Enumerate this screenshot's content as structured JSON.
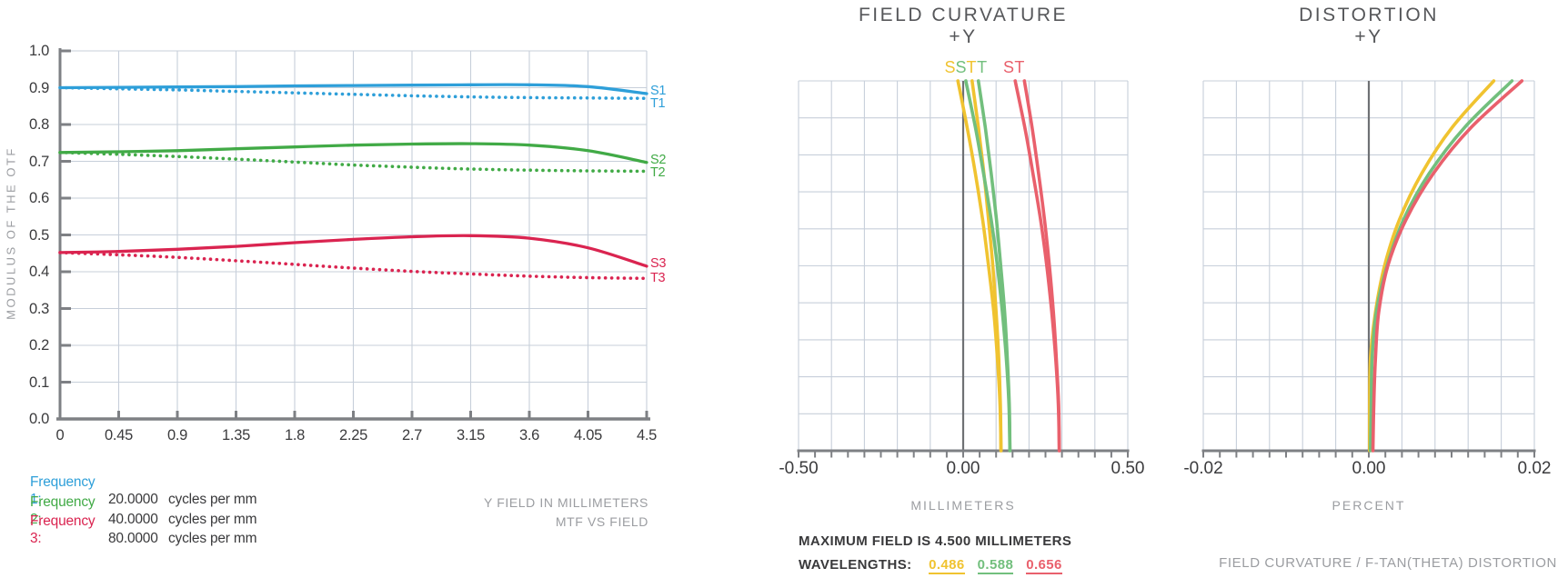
{
  "page": {
    "background": "#FFFFFF"
  },
  "colors": {
    "blue": "#2E9FD9",
    "green": "#41AA46",
    "red": "#DA2450",
    "fc_yellow": "#F0C330",
    "fc_green": "#72BF7D",
    "fc_red": "#E9606C",
    "grid": "#C7CFDA",
    "axis": "#7E8084",
    "zeroline": "#6F7174",
    "tick_text": "#3B3B3D",
    "title_text": "#56575A",
    "muted_text": "#9B9DA1",
    "dark_text": "#39393B"
  },
  "chart_data": [
    {
      "id": "mtf",
      "type": "line",
      "title": "",
      "ylabel": "MODULUS OF THE OTF",
      "xlabel": "Y FIELD IN MILLIMETERS",
      "caption": "MTF VS FIELD",
      "xlim": [
        0,
        4.5
      ],
      "ylim": [
        0,
        1.0
      ],
      "grid": true,
      "xtick_values": [
        0,
        0.45,
        0.9,
        1.35,
        1.8,
        2.25,
        2.7,
        3.15,
        3.6,
        4.05,
        4.5
      ],
      "xtick_labels": [
        "0",
        "0.45",
        "0.9",
        "1.35",
        "1.8",
        "2.25",
        "2.7",
        "3.15",
        "3.6",
        "4.05",
        "4.5"
      ],
      "ytick_values": [
        0,
        0.1,
        0.2,
        0.3,
        0.4,
        0.5,
        0.6,
        0.7,
        0.8,
        0.9,
        1.0
      ],
      "ytick_labels": [
        "0.0",
        "0.1",
        "0.2",
        "0.3",
        "0.4",
        "0.5",
        "0.6",
        "0.7",
        "0.8",
        "0.9",
        "1.0"
      ],
      "x": [
        0,
        0.45,
        0.9,
        1.35,
        1.8,
        2.25,
        2.7,
        3.15,
        3.6,
        4.05,
        4.5
      ],
      "series": [
        {
          "name": "S1",
          "style": "solid",
          "color": "#2E9FD9",
          "values": [
            0.9,
            0.901,
            0.902,
            0.903,
            0.905,
            0.906,
            0.907,
            0.908,
            0.908,
            0.903,
            0.884
          ]
        },
        {
          "name": "T1",
          "style": "dotted",
          "color": "#2E9FD9",
          "values": [
            0.9,
            0.897,
            0.894,
            0.89,
            0.886,
            0.882,
            0.878,
            0.875,
            0.873,
            0.872,
            0.871
          ]
        },
        {
          "name": "S2",
          "style": "solid",
          "color": "#41AA46",
          "values": [
            0.724,
            0.726,
            0.729,
            0.734,
            0.739,
            0.744,
            0.747,
            0.748,
            0.744,
            0.729,
            0.697
          ]
        },
        {
          "name": "T2",
          "style": "dotted",
          "color": "#41AA46",
          "values": [
            0.724,
            0.719,
            0.713,
            0.706,
            0.698,
            0.69,
            0.684,
            0.679,
            0.676,
            0.674,
            0.673
          ]
        },
        {
          "name": "S3",
          "style": "solid",
          "color": "#DA2450",
          "values": [
            0.452,
            0.455,
            0.461,
            0.469,
            0.479,
            0.488,
            0.495,
            0.498,
            0.491,
            0.465,
            0.415
          ]
        },
        {
          "name": "T3",
          "style": "dotted",
          "color": "#DA2450",
          "values": [
            0.452,
            0.446,
            0.439,
            0.43,
            0.42,
            0.41,
            0.401,
            0.394,
            0.388,
            0.384,
            0.382
          ]
        }
      ],
      "legend": [
        {
          "label": "Frequency 1:",
          "number": "20.0000",
          "unit": "cycles per mm",
          "color": "#2E9FD9"
        },
        {
          "label": "Frequency 2:",
          "number": "40.0000",
          "unit": "cycles per mm",
          "color": "#41AA46"
        },
        {
          "label": "Frequency 3:",
          "number": "80.0000",
          "unit": "cycles per mm",
          "color": "#DA2450"
        }
      ]
    },
    {
      "id": "field_curvature",
      "type": "line",
      "title": "FIELD CURVATURE",
      "subtitle": "+Y",
      "xlabel": "MILLIMETERS",
      "xlim": [
        -0.5,
        0.5
      ],
      "ylim": [
        0,
        4.5
      ],
      "grid": true,
      "xtick_values": [
        -0.5,
        0,
        0.5
      ],
      "xtick_labels": [
        "-0.50",
        "0.00",
        "0.50"
      ],
      "top_labels": [
        {
          "text": "S",
          "x": -0.04,
          "color": "#F0C330"
        },
        {
          "text": "S",
          "x": -0.007,
          "color": "#72BF7D"
        },
        {
          "text": "T",
          "x": 0.025,
          "color": "#F0C330"
        },
        {
          "text": "T",
          "x": 0.057,
          "color": "#72BF7D"
        },
        {
          "text": "S",
          "x": 0.138,
          "color": "#E9606C"
        },
        {
          "text": "T",
          "x": 0.171,
          "color": "#E9606C"
        }
      ],
      "series": [
        {
          "name": "S-0.486",
          "color": "#F0C330",
          "points": [
            [
              0.115,
              0
            ],
            [
              0.112,
              0.5625
            ],
            [
              0.104,
              1.125
            ],
            [
              0.093,
              1.6875
            ],
            [
              0.077,
              2.25
            ],
            [
              0.059,
              2.8125
            ],
            [
              0.037,
              3.375
            ],
            [
              0.012,
              3.9375
            ],
            [
              -0.016,
              4.5
            ]
          ]
        },
        {
          "name": "T-0.486",
          "color": "#F0C330",
          "points": [
            [
              0.115,
              0
            ],
            [
              0.113,
              0.5625
            ],
            [
              0.108,
              1.125
            ],
            [
              0.1,
              1.6875
            ],
            [
              0.09,
              2.25
            ],
            [
              0.077,
              2.8125
            ],
            [
              0.063,
              3.375
            ],
            [
              0.046,
              3.9375
            ],
            [
              0.027,
              4.5
            ]
          ]
        },
        {
          "name": "S-0.588",
          "color": "#72BF7D",
          "points": [
            [
              0.142,
              0
            ],
            [
              0.139,
              0.5625
            ],
            [
              0.131,
              1.125
            ],
            [
              0.119,
              1.6875
            ],
            [
              0.104,
              2.25
            ],
            [
              0.085,
              2.8125
            ],
            [
              0.062,
              3.375
            ],
            [
              0.037,
              3.9375
            ],
            [
              0.008,
              4.5
            ]
          ]
        },
        {
          "name": "T-0.588",
          "color": "#72BF7D",
          "points": [
            [
              0.142,
              0
            ],
            [
              0.14,
              0.5625
            ],
            [
              0.134,
              1.125
            ],
            [
              0.126,
              1.6875
            ],
            [
              0.114,
              2.25
            ],
            [
              0.101,
              2.8125
            ],
            [
              0.085,
              3.375
            ],
            [
              0.067,
              3.9375
            ],
            [
              0.046,
              4.5
            ]
          ]
        },
        {
          "name": "S-0.656",
          "color": "#E9606C",
          "points": [
            [
              0.292,
              0
            ],
            [
              0.289,
              0.5625
            ],
            [
              0.281,
              1.125
            ],
            [
              0.269,
              1.6875
            ],
            [
              0.254,
              2.25
            ],
            [
              0.235,
              2.8125
            ],
            [
              0.212,
              3.375
            ],
            [
              0.187,
              3.9375
            ],
            [
              0.158,
              4.5
            ]
          ]
        },
        {
          "name": "T-0.656",
          "color": "#E9606C",
          "points": [
            [
              0.292,
              0
            ],
            [
              0.29,
              0.5625
            ],
            [
              0.283,
              1.125
            ],
            [
              0.274,
              1.6875
            ],
            [
              0.262,
              2.25
            ],
            [
              0.247,
              2.8125
            ],
            [
              0.229,
              3.375
            ],
            [
              0.209,
              3.9375
            ],
            [
              0.186,
              4.5
            ]
          ]
        }
      ]
    },
    {
      "id": "distortion",
      "type": "line",
      "title": "DISTORTION",
      "subtitle": "+Y",
      "xlabel": "PERCENT",
      "xlim": [
        -0.02,
        0.02
      ],
      "ylim": [
        0,
        4.5
      ],
      "grid": true,
      "xtick_values": [
        -0.02,
        0,
        0.02
      ],
      "xtick_labels": [
        "-0.02",
        "0.00",
        "0.02"
      ],
      "series": [
        {
          "name": "0.486",
          "color": "#F0C330",
          "points": [
            [
              0.0001,
              0
            ],
            [
              0.0001,
              0.5625
            ],
            [
              0.0002,
              1.125
            ],
            [
              0.0008,
              1.6875
            ],
            [
              0.0019,
              2.25
            ],
            [
              0.0037,
              2.8125
            ],
            [
              0.0064,
              3.375
            ],
            [
              0.0101,
              3.9375
            ],
            [
              0.0151,
              4.5
            ]
          ]
        },
        {
          "name": "0.588",
          "color": "#72BF7D",
          "points": [
            [
              0.0002,
              0
            ],
            [
              0.0003,
              0.5625
            ],
            [
              0.0004,
              1.125
            ],
            [
              0.0009,
              1.6875
            ],
            [
              0.0022,
              2.25
            ],
            [
              0.0042,
              2.8125
            ],
            [
              0.0073,
              3.375
            ],
            [
              0.0116,
              3.9375
            ],
            [
              0.0173,
              4.5
            ]
          ]
        },
        {
          "name": "0.656",
          "color": "#E9606C",
          "points": [
            [
              0.0005,
              0
            ],
            [
              0.0006,
              0.5625
            ],
            [
              0.0008,
              1.125
            ],
            [
              0.0012,
              1.6875
            ],
            [
              0.0023,
              2.25
            ],
            [
              0.0045,
              2.8125
            ],
            [
              0.0078,
              3.375
            ],
            [
              0.0124,
              3.9375
            ],
            [
              0.0185,
              4.5
            ]
          ]
        }
      ]
    }
  ],
  "notes": {
    "max_field": "MAXIMUM FIELD IS 4.500 MILLIMETERS",
    "wavelengths_label": "WAVELENGTHS:",
    "wavelengths": [
      {
        "value": "0.486",
        "color": "#F0C330"
      },
      {
        "value": "0.588",
        "color": "#72BF7D"
      },
      {
        "value": "0.656",
        "color": "#E9606C"
      }
    ],
    "footer_right": "FIELD CURVATURE / F-TAN(THETA)  DISTORTION"
  }
}
